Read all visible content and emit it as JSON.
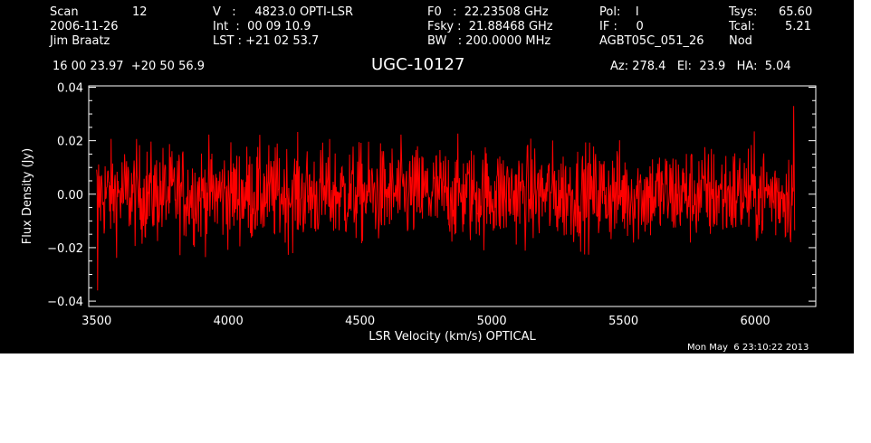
{
  "header": {
    "scan_label": "Scan",
    "scan_value": "12",
    "date": "2006-11-26",
    "observer": "Jim Braatz",
    "v_text": "V   :     4823.0 OPTI-LSR",
    "int_text": "Int  :  00 09 10.9",
    "lst_text": "LST : +21 02 53.7",
    "f0_text": "F0   :  22.23508 GHz",
    "fsky_text": "Fsky :  21.88468 GHz",
    "bw_text": "BW   : 200.0000 MHz",
    "pol_text": "Pol:    I",
    "if_text": "IF :     0",
    "project": "AGBT05C_051_26",
    "tsys_label": "Tsys:",
    "tsys_value": "65.60",
    "tcal_label": "Tcal:",
    "tcal_value": "5.21",
    "nod": "Nod",
    "coords": "16 00 23.97  +20 50 56.9",
    "source": "UGC-10127",
    "azelha": "Az: 278.4   El:  23.9   HA:  5.04",
    "timestamp": "Mon May  6 23:10:22 2013"
  },
  "colors": {
    "background": "#000000",
    "foreground": "#ffffff",
    "trace": "#ff0000"
  },
  "chart_data": {
    "type": "line",
    "title": "UGC-10127",
    "xlabel": "LSR Velocity (km/s) OPTICAL",
    "ylabel": "Flux Density (Jy)",
    "xlim": [
      3470,
      6230
    ],
    "ylim": [
      -0.042,
      0.0405
    ],
    "x_ticks": [
      3500,
      4000,
      4500,
      5000,
      5500,
      6000
    ],
    "x_tick_labels": [
      "3500",
      "4000",
      "4500",
      "5000",
      "5500",
      "6000"
    ],
    "y_ticks": [
      -0.04,
      -0.02,
      0.0,
      0.02,
      0.04
    ],
    "y_tick_labels": [
      "−0.04",
      "−0.02",
      "0.00",
      "0.02",
      "0.04"
    ],
    "grid": false,
    "series": [
      {
        "x_range": [
          3500,
          6150
        ],
        "points": 1400,
        "noise_rms_jy": 0.009,
        "peak_max_jy": 0.033,
        "peak_min_jy": -0.036
      }
    ]
  }
}
